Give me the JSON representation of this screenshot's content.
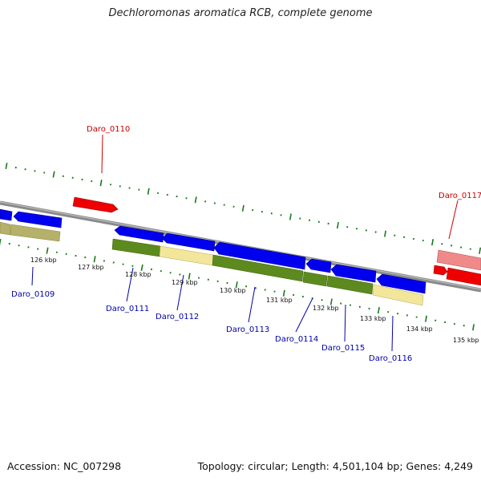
{
  "title": "Dechloromonas aromatica RCB, complete genome",
  "footer": {
    "accession": "Accession: NC_007298",
    "summary": "Topology: circular; Length: 4,501,104 bp; Genes: 4,249"
  },
  "colors": {
    "backbone": "#8a8a8a",
    "forward_gene": "#ee0000",
    "forward_gene_light": "#f08a8a",
    "reverse_gene": "#0000ee",
    "cog_olive": "#5d8a1e",
    "cog_khaki": "#b5b06a",
    "cog_yellow": "#f2e69a",
    "tick": "#1a7a1a",
    "label_red": "#cc0000",
    "label_blue": "#0000aa"
  },
  "scale_labels": [
    "126 kbp",
    "127 kbp",
    "128 kbp",
    "129 kbp",
    "130 kbp",
    "131 kbp",
    "132 kbp",
    "133 kbp",
    "134 kbp",
    "135 kbp"
  ],
  "gene_labels": [
    {
      "id": "daro-0110",
      "text": "Daro_0110",
      "strand": "forward"
    },
    {
      "id": "daro-0117",
      "text": "Daro_0117",
      "strand": "forward"
    },
    {
      "id": "daro-0109",
      "text": "Daro_0109",
      "strand": "reverse"
    },
    {
      "id": "daro-0111",
      "text": "Daro_0111",
      "strand": "reverse"
    },
    {
      "id": "daro-0112",
      "text": "Daro_0112",
      "strand": "reverse"
    },
    {
      "id": "daro-0113",
      "text": "Daro_0113",
      "strand": "reverse"
    },
    {
      "id": "daro-0114",
      "text": "Daro_0114",
      "strand": "reverse"
    },
    {
      "id": "daro-0115",
      "text": "Daro_0115",
      "strand": "reverse"
    },
    {
      "id": "daro-0116",
      "text": "Daro_0116",
      "strand": "reverse"
    }
  ]
}
